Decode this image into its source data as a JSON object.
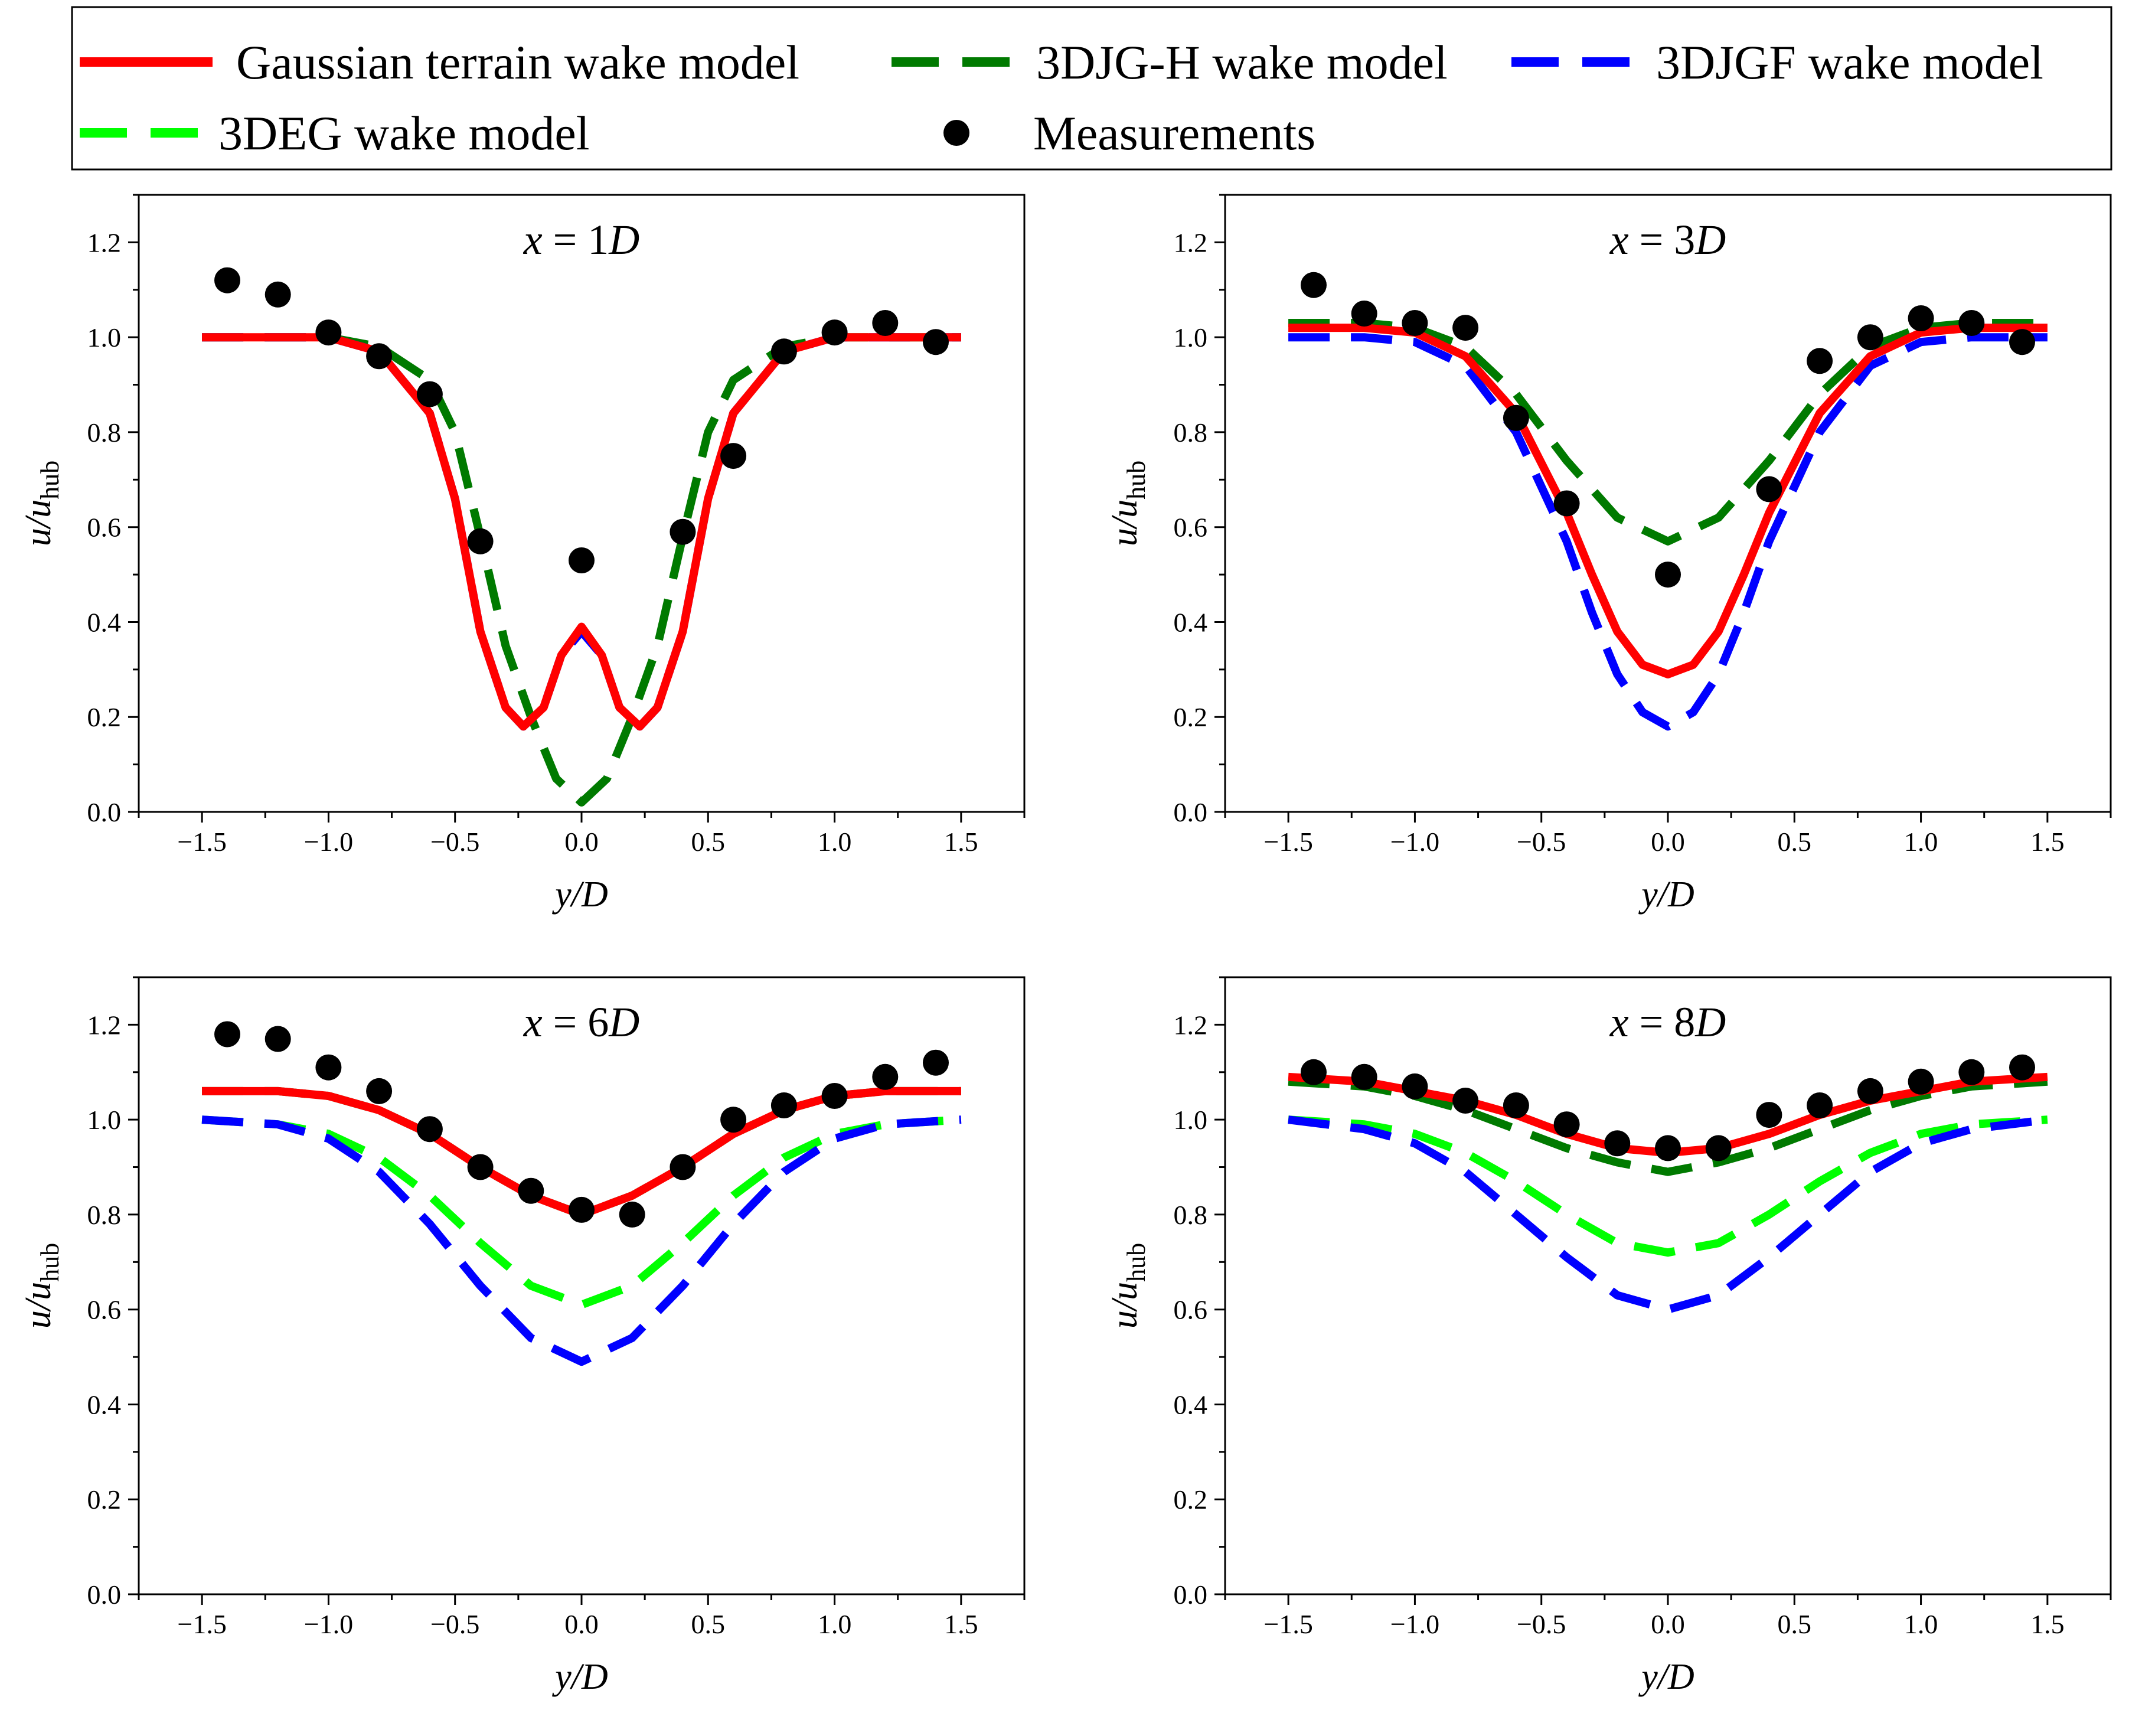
{
  "legend": {
    "entries": [
      {
        "key": "gauss",
        "label": "Gaussian terrain wake model",
        "color": "#ff0000",
        "style": "solid"
      },
      {
        "key": "djgh",
        "label": "3DJG-H wake model",
        "color": "#007a00",
        "style": "dashed"
      },
      {
        "key": "djgf",
        "label": "3DJGF wake model",
        "color": "#0000ff",
        "style": "dashed"
      },
      {
        "key": "deg",
        "label": "3DEG wake model",
        "color": "#00ff00",
        "style": "dashed"
      },
      {
        "key": "meas",
        "label": "Measurements",
        "color": "#000000",
        "style": "marker"
      }
    ]
  },
  "chart_data": [
    {
      "type": "line",
      "title_var": "x",
      "title_eq": " = 1",
      "title_unit": "D",
      "xlabel": "y/D",
      "ylabel_main": "u/u",
      "ylabel_sub": "hub",
      "xlim": [
        -1.75,
        1.75
      ],
      "ylim": [
        0.0,
        1.3
      ],
      "xticks": [
        -1.5,
        -1.0,
        -0.5,
        0.0,
        0.5,
        1.0,
        1.5
      ],
      "yticks": [
        0.0,
        0.2,
        0.4,
        0.6,
        0.8,
        1.0,
        1.2
      ],
      "xtick_labels": [
        "−1.5",
        "−1.0",
        "−0.5",
        "0.0",
        "0.5",
        "1.0",
        "1.5"
      ],
      "ytick_labels": [
        "0.0",
        "0.2",
        "0.4",
        "0.6",
        "0.8",
        "1.0",
        "1.2"
      ],
      "series": [
        {
          "key": "djgh",
          "name": "3DJG-H wake model",
          "x": [
            -1.5,
            -1.0,
            -0.8,
            -0.6,
            -0.5,
            -0.4,
            -0.3,
            -0.2,
            -0.1,
            0.0,
            0.1,
            0.2,
            0.3,
            0.4,
            0.5,
            0.6,
            0.8,
            1.0,
            1.2,
            1.5
          ],
          "y": [
            1.0,
            1.0,
            0.98,
            0.91,
            0.8,
            0.58,
            0.35,
            0.2,
            0.07,
            0.02,
            0.07,
            0.2,
            0.35,
            0.58,
            0.8,
            0.91,
            0.98,
            1.0,
            1.0,
            1.0
          ]
        },
        {
          "key": "djgf",
          "name": "3DJGF wake model",
          "x": [
            -1.5,
            -1.0,
            -0.8,
            -0.6,
            -0.5,
            -0.4,
            -0.3,
            -0.23,
            -0.15,
            -0.08,
            0.0,
            0.08,
            0.15,
            0.23,
            0.3,
            0.4,
            0.5,
            0.6,
            0.8,
            1.0,
            1.2,
            1.5
          ],
          "y": [
            1.0,
            1.0,
            0.97,
            0.84,
            0.66,
            0.38,
            0.22,
            0.18,
            0.22,
            0.33,
            0.38,
            0.33,
            0.22,
            0.18,
            0.22,
            0.38,
            0.66,
            0.84,
            0.97,
            1.0,
            1.0,
            1.0
          ]
        },
        {
          "key": "gauss",
          "name": "Gaussian terrain wake model",
          "x": [
            -1.5,
            -1.0,
            -0.8,
            -0.6,
            -0.5,
            -0.4,
            -0.3,
            -0.23,
            -0.15,
            -0.08,
            0.0,
            0.08,
            0.15,
            0.23,
            0.3,
            0.4,
            0.5,
            0.6,
            0.8,
            1.0,
            1.2,
            1.5
          ],
          "y": [
            1.0,
            1.0,
            0.97,
            0.84,
            0.66,
            0.38,
            0.22,
            0.18,
            0.22,
            0.33,
            0.39,
            0.33,
            0.22,
            0.18,
            0.22,
            0.38,
            0.66,
            0.84,
            0.97,
            1.0,
            1.0,
            1.0
          ]
        }
      ],
      "measurements": {
        "x": [
          -1.4,
          -1.2,
          -1.0,
          -0.8,
          -0.6,
          -0.4,
          0.0,
          0.4,
          0.6,
          0.8,
          1.0,
          1.2,
          1.4
        ],
        "y": [
          1.12,
          1.09,
          1.01,
          0.96,
          0.88,
          0.57,
          0.53,
          0.59,
          0.75,
          0.97,
          1.01,
          1.03,
          0.99
        ]
      }
    },
    {
      "type": "line",
      "title_var": "x",
      "title_eq": " = 3",
      "title_unit": "D",
      "xlabel": "y/D",
      "ylabel_main": "u/u",
      "ylabel_sub": "hub",
      "xlim": [
        -1.75,
        1.75
      ],
      "ylim": [
        0.0,
        1.3
      ],
      "xticks": [
        -1.5,
        -1.0,
        -0.5,
        0.0,
        0.5,
        1.0,
        1.5
      ],
      "yticks": [
        0.0,
        0.2,
        0.4,
        0.6,
        0.8,
        1.0,
        1.2
      ],
      "xtick_labels": [
        "−1.5",
        "−1.0",
        "−0.5",
        "0.0",
        "0.5",
        "1.0",
        "1.5"
      ],
      "ytick_labels": [
        "0.0",
        "0.2",
        "0.4",
        "0.6",
        "0.8",
        "1.0",
        "1.2"
      ],
      "series": [
        {
          "key": "djgh",
          "name": "3DJG-H wake model",
          "x": [
            -1.5,
            -1.2,
            -1.0,
            -0.8,
            -0.6,
            -0.4,
            -0.2,
            0.0,
            0.2,
            0.4,
            0.6,
            0.8,
            1.0,
            1.2,
            1.5
          ],
          "y": [
            1.03,
            1.03,
            1.02,
            0.98,
            0.88,
            0.74,
            0.62,
            0.57,
            0.62,
            0.74,
            0.88,
            0.98,
            1.02,
            1.03,
            1.03
          ]
        },
        {
          "key": "djgf",
          "name": "3DJGF wake model",
          "x": [
            -1.5,
            -1.2,
            -1.0,
            -0.8,
            -0.6,
            -0.4,
            -0.3,
            -0.2,
            -0.1,
            0.0,
            0.1,
            0.2,
            0.3,
            0.4,
            0.6,
            0.8,
            1.0,
            1.2,
            1.5
          ],
          "y": [
            1.0,
            1.0,
            0.99,
            0.94,
            0.8,
            0.57,
            0.42,
            0.29,
            0.21,
            0.18,
            0.21,
            0.29,
            0.42,
            0.57,
            0.8,
            0.94,
            0.99,
            1.0,
            1.0
          ]
        },
        {
          "key": "gauss",
          "name": "Gaussian terrain wake model",
          "x": [
            -1.5,
            -1.2,
            -1.0,
            -0.8,
            -0.6,
            -0.4,
            -0.3,
            -0.2,
            -0.1,
            0.0,
            0.1,
            0.2,
            0.3,
            0.4,
            0.6,
            0.8,
            1.0,
            1.2,
            1.5
          ],
          "y": [
            1.02,
            1.02,
            1.01,
            0.96,
            0.84,
            0.63,
            0.5,
            0.38,
            0.31,
            0.29,
            0.31,
            0.38,
            0.5,
            0.63,
            0.84,
            0.96,
            1.01,
            1.02,
            1.02
          ]
        }
      ],
      "measurements": {
        "x": [
          -1.4,
          -1.2,
          -1.0,
          -0.8,
          -0.6,
          -0.4,
          0.0,
          0.4,
          0.6,
          0.8,
          1.0,
          1.2,
          1.4
        ],
        "y": [
          1.11,
          1.05,
          1.03,
          1.02,
          0.83,
          0.65,
          0.5,
          0.68,
          0.95,
          1.0,
          1.04,
          1.03,
          0.99
        ]
      }
    },
    {
      "type": "line",
      "title_var": "x",
      "title_eq": " = 6",
      "title_unit": "D",
      "xlabel": "y/D",
      "ylabel_main": "u/u",
      "ylabel_sub": "hub",
      "xlim": [
        -1.75,
        1.75
      ],
      "ylim": [
        0.0,
        1.3
      ],
      "xticks": [
        -1.5,
        -1.0,
        -0.5,
        0.0,
        0.5,
        1.0,
        1.5
      ],
      "yticks": [
        0.0,
        0.2,
        0.4,
        0.6,
        0.8,
        1.0,
        1.2
      ],
      "xtick_labels": [
        "−1.5",
        "−1.0",
        "−0.5",
        "0.0",
        "0.5",
        "1.0",
        "1.5"
      ],
      "ytick_labels": [
        "0.0",
        "0.2",
        "0.4",
        "0.6",
        "0.8",
        "1.0",
        "1.2"
      ],
      "series": [
        {
          "key": "deg",
          "name": "3DEG wake model",
          "x": [
            -1.5,
            -1.2,
            -1.0,
            -0.8,
            -0.6,
            -0.4,
            -0.2,
            0.0,
            0.2,
            0.4,
            0.6,
            0.8,
            1.0,
            1.2,
            1.5
          ],
          "y": [
            1.0,
            0.99,
            0.97,
            0.92,
            0.84,
            0.74,
            0.65,
            0.61,
            0.65,
            0.74,
            0.84,
            0.92,
            0.97,
            0.99,
            1.0
          ]
        },
        {
          "key": "djgf",
          "name": "3DJGF wake model",
          "x": [
            -1.5,
            -1.2,
            -1.0,
            -0.8,
            -0.6,
            -0.4,
            -0.2,
            0.0,
            0.2,
            0.4,
            0.6,
            0.8,
            1.0,
            1.2,
            1.5
          ],
          "y": [
            1.0,
            0.99,
            0.96,
            0.89,
            0.78,
            0.65,
            0.54,
            0.49,
            0.54,
            0.65,
            0.78,
            0.89,
            0.96,
            0.99,
            1.0
          ]
        },
        {
          "key": "djgh",
          "name": "3DJG-H wake model",
          "x": [
            -1.5,
            -1.2,
            -1.0,
            -0.8,
            -0.6,
            -0.4,
            -0.2,
            0.0,
            0.2,
            0.4,
            0.6,
            0.8,
            1.0,
            1.2,
            1.5
          ],
          "y": [
            1.06,
            1.06,
            1.05,
            1.02,
            0.97,
            0.9,
            0.84,
            0.8,
            0.84,
            0.9,
            0.97,
            1.02,
            1.05,
            1.06,
            1.06
          ]
        },
        {
          "key": "gauss",
          "name": "Gaussian terrain wake model",
          "x": [
            -1.5,
            -1.2,
            -1.0,
            -0.8,
            -0.6,
            -0.4,
            -0.2,
            0.0,
            0.2,
            0.4,
            0.6,
            0.8,
            1.0,
            1.2,
            1.5
          ],
          "y": [
            1.06,
            1.06,
            1.05,
            1.02,
            0.97,
            0.9,
            0.84,
            0.8,
            0.84,
            0.9,
            0.97,
            1.02,
            1.05,
            1.06,
            1.06
          ]
        }
      ],
      "measurements": {
        "x": [
          -1.4,
          -1.2,
          -1.0,
          -0.8,
          -0.6,
          -0.4,
          -0.2,
          0.0,
          0.2,
          0.4,
          0.6,
          0.8,
          1.0,
          1.2,
          1.4
        ],
        "y": [
          1.18,
          1.17,
          1.11,
          1.06,
          0.98,
          0.9,
          0.85,
          0.81,
          0.8,
          0.9,
          1.0,
          1.03,
          1.05,
          1.09,
          1.12
        ]
      }
    },
    {
      "type": "line",
      "title_var": "x",
      "title_eq": " = 8",
      "title_unit": "D",
      "xlabel": "y/D",
      "ylabel_main": "u/u",
      "ylabel_sub": "hub",
      "xlim": [
        -1.75,
        1.75
      ],
      "ylim": [
        0.0,
        1.3
      ],
      "xticks": [
        -1.5,
        -1.0,
        -0.5,
        0.0,
        0.5,
        1.0,
        1.5
      ],
      "yticks": [
        0.0,
        0.2,
        0.4,
        0.6,
        0.8,
        1.0,
        1.2
      ],
      "xtick_labels": [
        "−1.5",
        "−1.0",
        "−0.5",
        "0.0",
        "0.5",
        "1.0",
        "1.5"
      ],
      "ytick_labels": [
        "0.0",
        "0.2",
        "0.4",
        "0.6",
        "0.8",
        "1.0",
        "1.2"
      ],
      "series": [
        {
          "key": "deg",
          "name": "3DEG wake model",
          "x": [
            -1.5,
            -1.2,
            -1.0,
            -0.8,
            -0.6,
            -0.4,
            -0.2,
            0.0,
            0.2,
            0.4,
            0.6,
            0.8,
            1.0,
            1.2,
            1.5
          ],
          "y": [
            1.0,
            0.99,
            0.97,
            0.93,
            0.87,
            0.8,
            0.74,
            0.72,
            0.74,
            0.8,
            0.87,
            0.93,
            0.97,
            0.99,
            1.0
          ]
        },
        {
          "key": "djgf",
          "name": "3DJGF wake model",
          "x": [
            -1.5,
            -1.2,
            -1.0,
            -0.8,
            -0.6,
            -0.4,
            -0.2,
            0.0,
            0.2,
            0.4,
            0.6,
            0.8,
            1.0,
            1.2,
            1.5
          ],
          "y": [
            1.0,
            0.98,
            0.95,
            0.89,
            0.8,
            0.71,
            0.63,
            0.6,
            0.63,
            0.71,
            0.8,
            0.89,
            0.95,
            0.98,
            1.0
          ]
        },
        {
          "key": "djgh",
          "name": "3DJG-H wake model",
          "x": [
            -1.5,
            -1.2,
            -1.0,
            -0.8,
            -0.6,
            -0.4,
            -0.2,
            0.0,
            0.2,
            0.4,
            0.6,
            0.8,
            1.0,
            1.2,
            1.5
          ],
          "y": [
            1.08,
            1.07,
            1.05,
            1.02,
            0.98,
            0.94,
            0.91,
            0.89,
            0.91,
            0.94,
            0.98,
            1.02,
            1.05,
            1.07,
            1.08
          ]
        },
        {
          "key": "gauss",
          "name": "Gaussian terrain wake model",
          "x": [
            -1.5,
            -1.2,
            -1.0,
            -0.8,
            -0.6,
            -0.4,
            -0.2,
            0.0,
            0.2,
            0.4,
            0.6,
            0.8,
            1.0,
            1.2,
            1.5
          ],
          "y": [
            1.09,
            1.08,
            1.06,
            1.04,
            1.01,
            0.97,
            0.94,
            0.93,
            0.94,
            0.97,
            1.01,
            1.04,
            1.06,
            1.08,
            1.09
          ]
        }
      ],
      "measurements": {
        "x": [
          -1.4,
          -1.2,
          -1.0,
          -0.8,
          -0.6,
          -0.4,
          -0.2,
          0.0,
          0.2,
          0.4,
          0.6,
          0.8,
          1.0,
          1.2,
          1.4
        ],
        "y": [
          1.1,
          1.09,
          1.07,
          1.04,
          1.03,
          0.99,
          0.95,
          0.94,
          0.94,
          1.01,
          1.03,
          1.06,
          1.08,
          1.1,
          1.11
        ]
      }
    }
  ]
}
